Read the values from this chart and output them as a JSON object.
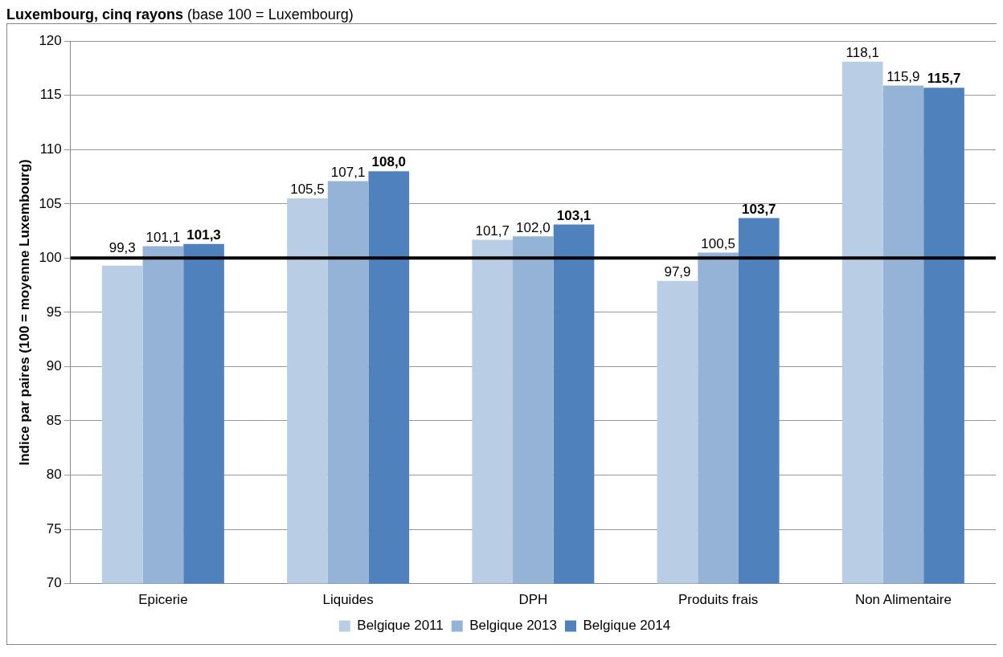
{
  "chart_data": {
    "type": "bar",
    "title": "Luxembourg, cinq rayons",
    "subtitle": "(base 100 = Luxembourg)",
    "ylabel": "Indice par paires (100 = moyenne Luxembourg)",
    "categories": [
      "Epicerie",
      "Liquides",
      "DPH",
      "Produits frais",
      "Non Alimentaire"
    ],
    "series": [
      {
        "name": "Belgique 2011",
        "color": "#b9cde5",
        "values": [
          99.3,
          105.5,
          101.7,
          97.9,
          118.1
        ],
        "value_labels": [
          "99,3",
          "105,5",
          "101,7",
          "97,9",
          "118,1"
        ]
      },
      {
        "name": "Belgique 2013",
        "color": "#95b3d7",
        "values": [
          101.1,
          107.1,
          102.0,
          100.5,
          115.9
        ],
        "value_labels": [
          "101,1",
          "107,1",
          "102,0",
          "100,5",
          "115,9"
        ]
      },
      {
        "name": "Belgique 2014",
        "color": "#4f81bd",
        "values": [
          101.3,
          108.0,
          103.1,
          103.7,
          115.7
        ],
        "value_labels": [
          "101,3",
          "108,0",
          "103,1",
          "103,7",
          "115,7"
        ]
      }
    ],
    "ylim": [
      70,
      120
    ],
    "yticks": [
      70,
      75,
      80,
      85,
      90,
      95,
      100,
      105,
      110,
      115,
      120
    ],
    "grid": "y",
    "legend": "bottom",
    "ref_lines": [
      {
        "axis": "y",
        "value": 100,
        "color": "#000000"
      }
    ]
  }
}
